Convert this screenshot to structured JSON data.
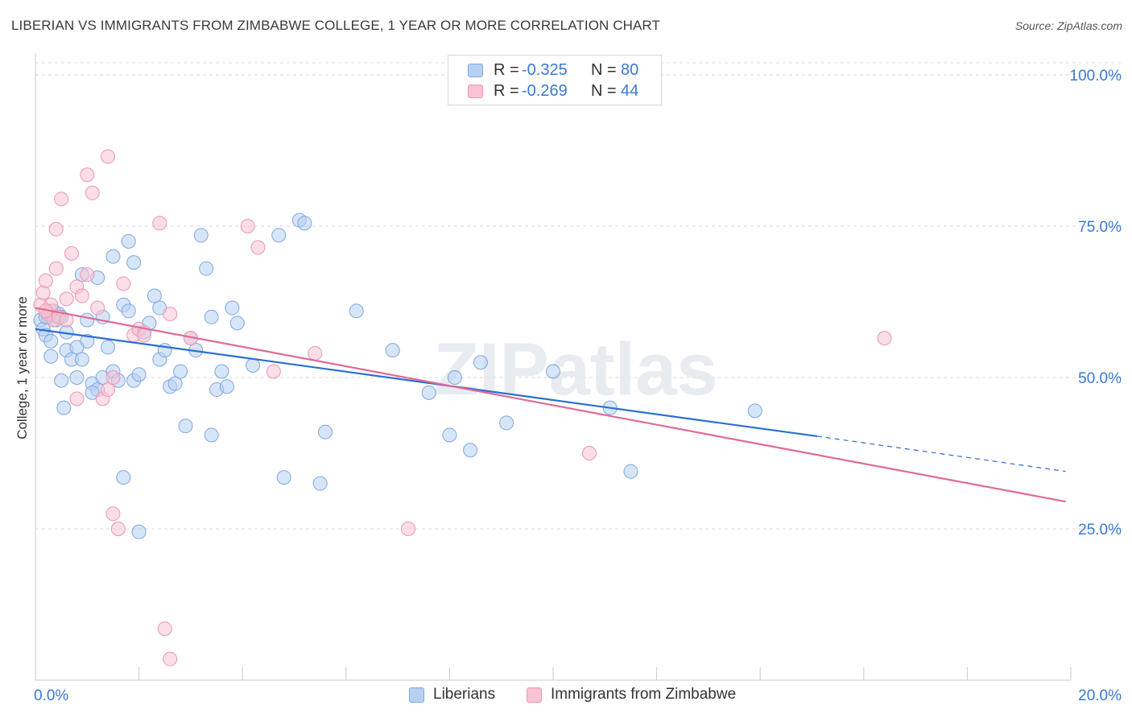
{
  "header": {
    "title": "LIBERIAN VS IMMIGRANTS FROM ZIMBABWE COLLEGE, 1 YEAR OR MORE CORRELATION CHART",
    "source": "Source: ZipAtlas.com"
  },
  "watermark": "ZIPatlas",
  "legend_top": [
    {
      "r_label": "R = ",
      "r_value": "-0.325",
      "n_label": "N = ",
      "n_value": "80"
    },
    {
      "r_label": "R = ",
      "r_value": "-0.269",
      "n_label": "N = ",
      "n_value": "44"
    }
  ],
  "legend_bottom": [
    "Liberians",
    "Immigrants from Zimbabwe"
  ],
  "colors": {
    "blue_fill": "#b7d0f2",
    "blue_stroke": "#7ea7e0",
    "blue_line": "#2a6fd1",
    "pink_fill": "#f8c3d3",
    "pink_stroke": "#ee96b0",
    "pink_line": "#e06a95",
    "tick_label": "#3a78d4",
    "grid": "#d8d8d8"
  },
  "chart_data": {
    "type": "scatter",
    "title": "LIBERIAN VS IMMIGRANTS FROM ZIMBABWE COLLEGE, 1 YEAR OR MORE CORRELATION CHART",
    "xlabel": "",
    "ylabel": "College, 1 year or more",
    "xlim": [
      0,
      20
    ],
    "ylim": [
      0,
      102
    ],
    "x_tick_labels": [
      "0.0%",
      "20.0%"
    ],
    "y_tick_labels": [
      "25.0%",
      "50.0%",
      "75.0%",
      "100.0%"
    ],
    "y_ticks": [
      25,
      50,
      75,
      100
    ],
    "grid": true,
    "legend_position": "top-center",
    "series": [
      {
        "name": "Liberians",
        "r": -0.325,
        "n": 80,
        "trend": {
          "x_start": 0,
          "y_start": 58,
          "x_solid_end": 15.1,
          "y_solid_end": 40.3,
          "x_end": 19.9,
          "y_end": 34.5
        },
        "points": [
          [
            0.1,
            59.5
          ],
          [
            0.15,
            58
          ],
          [
            0.2,
            57
          ],
          [
            0.25,
            60
          ],
          [
            0.3,
            56
          ],
          [
            0.35,
            61
          ],
          [
            0.4,
            59.5
          ],
          [
            0.45,
            60.5
          ],
          [
            0.3,
            53.5
          ],
          [
            0.2,
            60
          ],
          [
            0.5,
            60
          ],
          [
            0.6,
            54.5
          ],
          [
            0.7,
            53
          ],
          [
            0.8,
            50
          ],
          [
            0.9,
            53
          ],
          [
            1.0,
            56
          ],
          [
            1.1,
            49
          ],
          [
            1.2,
            48
          ],
          [
            1.3,
            50
          ],
          [
            1.4,
            55
          ],
          [
            1.5,
            51
          ],
          [
            1.6,
            49.5
          ],
          [
            1.7,
            62
          ],
          [
            1.8,
            61
          ],
          [
            1.9,
            49.5
          ],
          [
            2.0,
            50.5
          ],
          [
            2.1,
            57.5
          ],
          [
            2.2,
            59
          ],
          [
            2.3,
            63.5
          ],
          [
            2.4,
            53
          ],
          [
            2.5,
            54.5
          ],
          [
            2.6,
            48.5
          ],
          [
            2.7,
            49
          ],
          [
            2.8,
            51
          ],
          [
            3.0,
            56.5
          ],
          [
            3.1,
            54.5
          ],
          [
            3.2,
            73.5
          ],
          [
            3.3,
            68
          ],
          [
            3.4,
            60
          ],
          [
            3.5,
            48
          ],
          [
            3.6,
            51
          ],
          [
            3.7,
            48.5
          ],
          [
            3.8,
            61.5
          ],
          [
            3.9,
            59
          ],
          [
            4.2,
            52
          ],
          [
            4.7,
            73.5
          ],
          [
            5.1,
            76
          ],
          [
            5.2,
            75.5
          ],
          [
            4.8,
            33.5
          ],
          [
            5.5,
            32.5
          ],
          [
            3.4,
            40.5
          ],
          [
            2.9,
            42
          ],
          [
            2.0,
            24.5
          ],
          [
            1.7,
            33.5
          ],
          [
            5.6,
            41
          ],
          [
            6.2,
            61
          ],
          [
            6.9,
            54.5
          ],
          [
            7.6,
            47.5
          ],
          [
            8.0,
            40.5
          ],
          [
            8.4,
            38
          ],
          [
            8.1,
            50
          ],
          [
            8.6,
            52.5
          ],
          [
            9.1,
            42.5
          ],
          [
            10.0,
            51
          ],
          [
            11.1,
            45
          ],
          [
            11.5,
            34.5
          ],
          [
            13.9,
            44.5
          ],
          [
            1.2,
            66.5
          ],
          [
            1.3,
            60
          ],
          [
            1.5,
            70
          ],
          [
            1.8,
            72.5
          ],
          [
            0.9,
            67
          ],
          [
            1.0,
            59.5
          ],
          [
            0.8,
            55
          ],
          [
            0.6,
            57.5
          ],
          [
            0.5,
            49.5
          ],
          [
            0.55,
            45
          ],
          [
            1.1,
            47.5
          ],
          [
            2.4,
            61.5
          ],
          [
            1.9,
            69
          ]
        ]
      },
      {
        "name": "Immigrants from Zimbabwe",
        "r": -0.269,
        "n": 44,
        "trend": {
          "x_start": 0,
          "y_start": 61.5,
          "x_solid_end": 19.9,
          "y_solid_end": 29.5,
          "x_end": 19.9,
          "y_end": 29.5
        },
        "points": [
          [
            0.1,
            62
          ],
          [
            0.15,
            64
          ],
          [
            0.2,
            66
          ],
          [
            0.25,
            60.5
          ],
          [
            0.3,
            61
          ],
          [
            0.35,
            59.5
          ],
          [
            0.4,
            68
          ],
          [
            0.45,
            60
          ],
          [
            0.5,
            79.5
          ],
          [
            0.6,
            63
          ],
          [
            0.7,
            70.5
          ],
          [
            0.8,
            65
          ],
          [
            0.9,
            63.5
          ],
          [
            1.0,
            67
          ],
          [
            1.1,
            80.5
          ],
          [
            1.3,
            46.5
          ],
          [
            1.4,
            48
          ],
          [
            1.5,
            50
          ],
          [
            1.7,
            65.5
          ],
          [
            1.9,
            57
          ],
          [
            2.0,
            58
          ],
          [
            2.1,
            57
          ],
          [
            2.4,
            75.5
          ],
          [
            2.6,
            60.5
          ],
          [
            3.0,
            56.5
          ],
          [
            4.1,
            75
          ],
          [
            4.3,
            71.5
          ],
          [
            4.6,
            51
          ],
          [
            5.4,
            54
          ],
          [
            7.2,
            25
          ],
          [
            10.7,
            37.5
          ],
          [
            16.4,
            56.5
          ],
          [
            1.5,
            27.5
          ],
          [
            1.6,
            25
          ],
          [
            1.4,
            86.5
          ],
          [
            1.0,
            83.5
          ],
          [
            0.4,
            74.5
          ],
          [
            2.5,
            8.5
          ],
          [
            2.6,
            3.5
          ],
          [
            0.8,
            46.5
          ],
          [
            0.6,
            59.5
          ],
          [
            0.3,
            62
          ],
          [
            0.2,
            61
          ],
          [
            1.2,
            61.5
          ]
        ]
      }
    ]
  }
}
